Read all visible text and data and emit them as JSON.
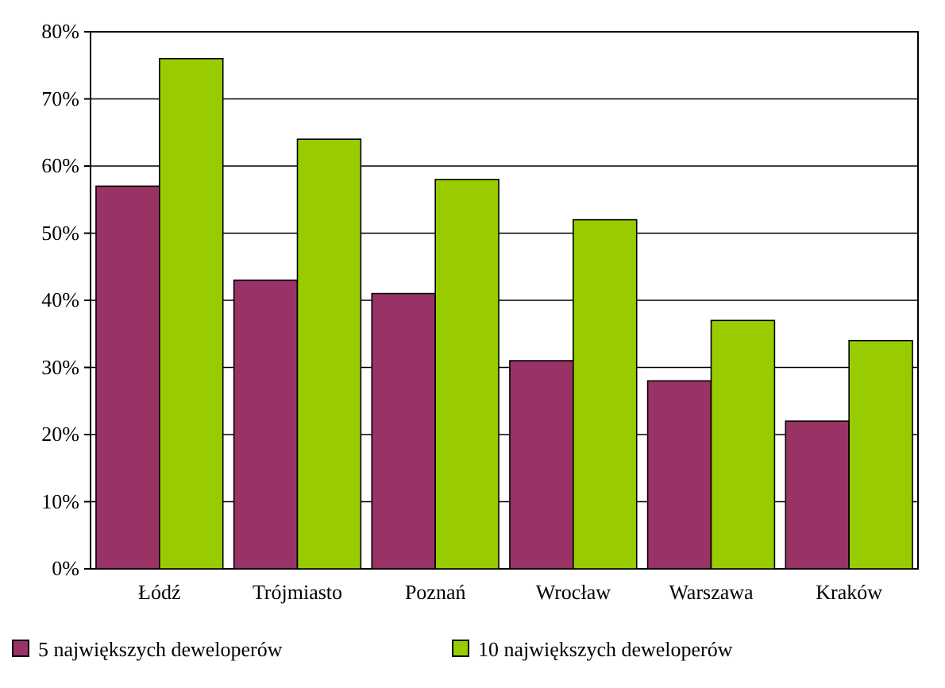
{
  "chart_data": {
    "type": "bar",
    "categories": [
      "Łódź",
      "Trójmiasto",
      "Poznań",
      "Wrocław",
      "Warszawa",
      "Kraków"
    ],
    "series": [
      {
        "name": "5 największych deweloperów",
        "color": "#993366",
        "values": [
          57,
          43,
          41,
          31,
          28,
          22
        ]
      },
      {
        "name": "10 największych deweloperów",
        "color": "#99cc00",
        "values": [
          76,
          64,
          58,
          52,
          37,
          34
        ]
      }
    ],
    "ylim": [
      0,
      80
    ],
    "yticks": [
      {
        "value": 0,
        "label": "0%"
      },
      {
        "value": 10,
        "label": "10%"
      },
      {
        "value": 20,
        "label": "20%"
      },
      {
        "value": 30,
        "label": "30%"
      },
      {
        "value": 40,
        "label": "40%"
      },
      {
        "value": 50,
        "label": "50%"
      },
      {
        "value": 60,
        "label": "60%"
      },
      {
        "value": 70,
        "label": "70%"
      },
      {
        "value": 80,
        "label": "80%"
      }
    ],
    "grid": "y",
    "legend": "bottom"
  }
}
